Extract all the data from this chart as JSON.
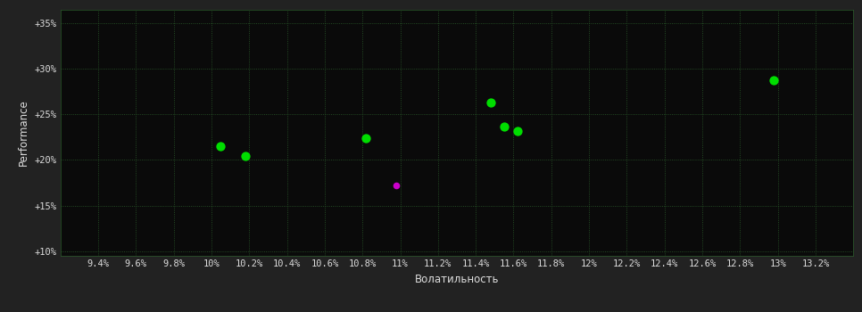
{
  "background_color": "#222222",
  "plot_bg_color": "#0a0a0a",
  "grid_color": "#2a5c2a",
  "text_color": "#dddddd",
  "xlabel": "Волатильность",
  "ylabel": "Performance",
  "xlim": [
    0.092,
    0.134
  ],
  "ylim": [
    0.095,
    0.365
  ],
  "xticks": [
    0.094,
    0.096,
    0.098,
    0.1,
    0.102,
    0.104,
    0.106,
    0.108,
    0.11,
    0.112,
    0.114,
    0.116,
    0.118,
    0.12,
    0.122,
    0.124,
    0.126,
    0.128,
    0.13,
    0.132
  ],
  "xtick_labels": [
    "9.4%",
    "9.6%",
    "9.8%",
    "10%",
    "10.2%",
    "10.4%",
    "10.6%",
    "10.8%",
    "11%",
    "11.2%",
    "11.4%",
    "11.6%",
    "11.8%",
    "12%",
    "12.2%",
    "12.4%",
    "12.6%",
    "12.8%",
    "13%",
    "13.2%"
  ],
  "yticks": [
    0.1,
    0.15,
    0.2,
    0.25,
    0.3,
    0.35
  ],
  "ytick_labels": [
    "+10%",
    "+15%",
    "+20%",
    "+25%",
    "+30%",
    "+35%"
  ],
  "green_points": [
    [
      0.1005,
      0.215
    ],
    [
      0.1018,
      0.204
    ],
    [
      0.1082,
      0.224
    ],
    [
      0.1148,
      0.263
    ],
    [
      0.1155,
      0.237
    ],
    [
      0.1162,
      0.232
    ],
    [
      0.1298,
      0.287
    ]
  ],
  "magenta_points": [
    [
      0.1098,
      0.172
    ]
  ],
  "green_color": "#00dd00",
  "magenta_color": "#cc00cc",
  "marker_size": 55
}
